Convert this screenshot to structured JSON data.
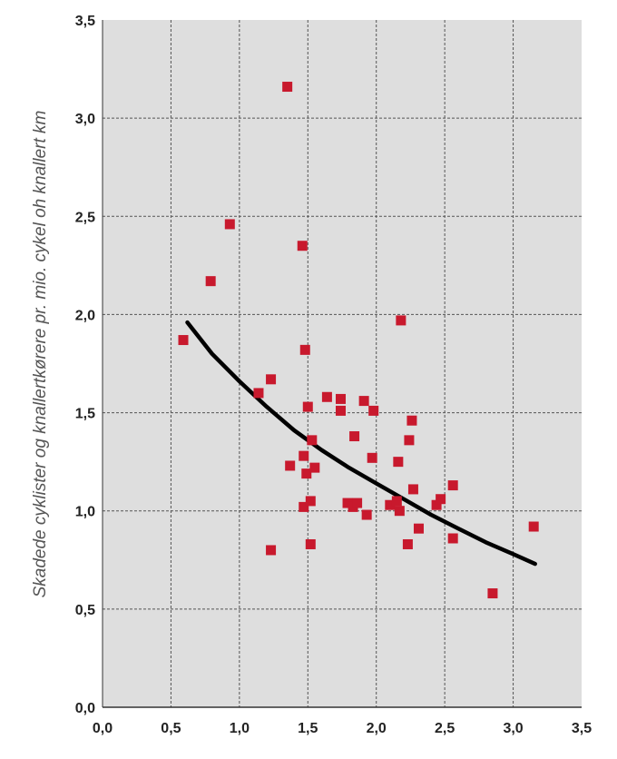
{
  "chart_data": {
    "type": "scatter",
    "title": "",
    "xlabel": "",
    "ylabel": "Skadede cyklister og knallertkørere pr. mio. cykel oh knallert km",
    "xlim": [
      0,
      3.5
    ],
    "ylim": [
      0,
      3.5
    ],
    "x_ticks": [
      "0,0",
      "0,5",
      "1,0",
      "1,5",
      "2,0",
      "2,5",
      "3,0",
      "3,5"
    ],
    "y_ticks": [
      "0,0",
      "0,5",
      "1,0",
      "1,5",
      "2,0",
      "2,5",
      "3,0",
      "3,5"
    ],
    "grid": true,
    "colors": {
      "plot_background": "#dedede",
      "grid": "#555555",
      "points": "#c8192d",
      "trend_line": "#000000"
    },
    "points": [
      [
        0.59,
        1.87
      ],
      [
        0.79,
        2.17
      ],
      [
        0.93,
        2.46
      ],
      [
        1.14,
        1.6
      ],
      [
        1.23,
        1.67
      ],
      [
        1.23,
        0.8
      ],
      [
        1.35,
        3.16
      ],
      [
        1.37,
        1.23
      ],
      [
        1.46,
        2.35
      ],
      [
        1.47,
        1.28
      ],
      [
        1.47,
        1.02
      ],
      [
        1.48,
        1.82
      ],
      [
        1.49,
        1.19
      ],
      [
        1.5,
        1.53
      ],
      [
        1.52,
        1.05
      ],
      [
        1.52,
        0.83
      ],
      [
        1.53,
        1.36
      ],
      [
        1.55,
        1.22
      ],
      [
        1.64,
        1.58
      ],
      [
        1.74,
        1.57
      ],
      [
        1.74,
        1.51
      ],
      [
        1.79,
        1.04
      ],
      [
        1.83,
        1.02
      ],
      [
        1.84,
        1.38
      ],
      [
        1.86,
        1.04
      ],
      [
        1.91,
        1.56
      ],
      [
        1.93,
        0.98
      ],
      [
        1.97,
        1.27
      ],
      [
        1.98,
        1.51
      ],
      [
        2.1,
        1.03
      ],
      [
        2.15,
        1.05
      ],
      [
        2.16,
        1.25
      ],
      [
        2.17,
        1.0
      ],
      [
        2.18,
        1.97
      ],
      [
        2.23,
        0.83
      ],
      [
        2.24,
        1.36
      ],
      [
        2.26,
        1.46
      ],
      [
        2.27,
        1.11
      ],
      [
        2.31,
        0.91
      ],
      [
        2.44,
        1.03
      ],
      [
        2.47,
        1.06
      ],
      [
        2.56,
        1.13
      ],
      [
        2.56,
        0.86
      ],
      [
        2.85,
        0.58
      ],
      [
        3.15,
        0.92
      ]
    ],
    "trend_line": [
      [
        0.62,
        1.96
      ],
      [
        0.8,
        1.8
      ],
      [
        1.0,
        1.66
      ],
      [
        1.2,
        1.53
      ],
      [
        1.4,
        1.41
      ],
      [
        1.6,
        1.31
      ],
      [
        1.8,
        1.22
      ],
      [
        2.0,
        1.14
      ],
      [
        2.2,
        1.06
      ],
      [
        2.4,
        0.98
      ],
      [
        2.6,
        0.91
      ],
      [
        2.8,
        0.84
      ],
      [
        3.0,
        0.78
      ],
      [
        3.16,
        0.73
      ]
    ]
  }
}
